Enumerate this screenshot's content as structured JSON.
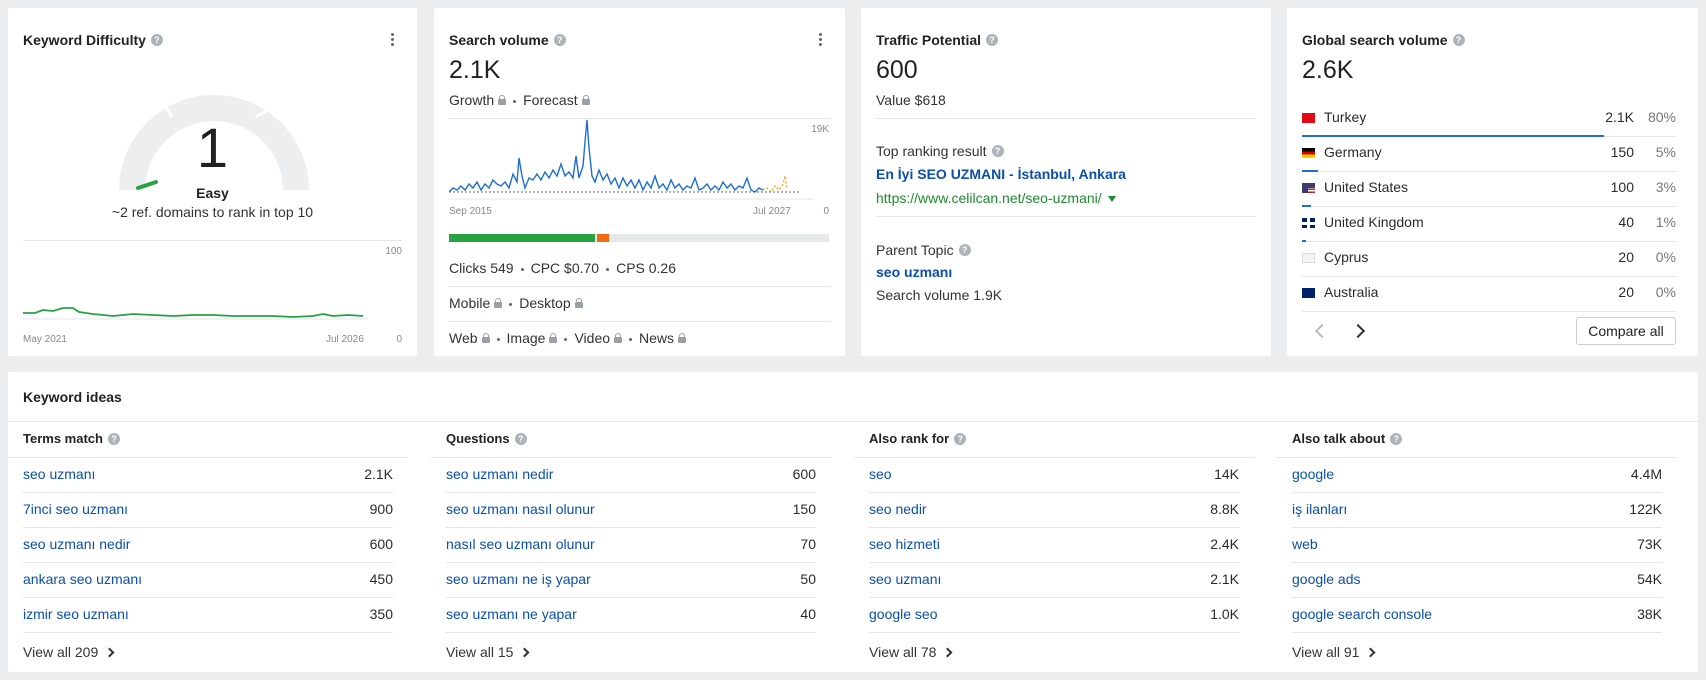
{
  "kd": {
    "title": "Keyword Difficulty",
    "score": "1",
    "score_value": 1,
    "label": "Easy",
    "note": "~2 ref. domains to rank in top 10",
    "chart_start": "May 2021",
    "chart_end": "Jul 2026",
    "chart_max": "100",
    "chart_min": "0"
  },
  "sv": {
    "title": "Search volume",
    "value": "2.1K",
    "growth": "Growth",
    "forecast": "Forecast",
    "chart_start": "Sep 2015",
    "chart_end": "Jul 2027",
    "chart_max": "19K",
    "chart_min": "0",
    "clicks": "Clicks 549",
    "cpc": "CPC $0.70",
    "cps": "CPS 0.26",
    "mobile": "Mobile",
    "desktop": "Desktop",
    "web": "Web",
    "image": "Image",
    "video": "Video",
    "news": "News",
    "click_split": {
      "organic": 0.385,
      "paid": 0.03
    },
    "colors": {
      "organic": "#27a243",
      "paid": "#f06a0f",
      "none": "#e7e8ea"
    }
  },
  "tp": {
    "title": "Traffic Potential",
    "value": "600",
    "value_usd": "Value $618",
    "top_label": "Top ranking result",
    "top_title": "En İyi SEO UZMANI - İstanbul, Ankara",
    "top_url": "https://www.celilcan.net/seo-uzmani/",
    "parent_label": "Parent Topic",
    "parent_kw": "seo uzmanı",
    "parent_sv": "Search volume 1.9K"
  },
  "gsv": {
    "title": "Global search volume",
    "value": "2.6K",
    "rows": [
      {
        "country": "Turkey",
        "value": "2.1K",
        "pct": "80%",
        "share": 0.8,
        "flag": "tr"
      },
      {
        "country": "Germany",
        "value": "150",
        "pct": "5%",
        "share": 0.05,
        "flag": "de"
      },
      {
        "country": "United States",
        "value": "100",
        "pct": "3%",
        "share": 0.03,
        "flag": "us"
      },
      {
        "country": "United Kingdom",
        "value": "40",
        "pct": "1%",
        "share": 0.01,
        "flag": "gb"
      },
      {
        "country": "Cyprus",
        "value": "20",
        "pct": "0%",
        "share": 0.0,
        "flag": "cy"
      },
      {
        "country": "Australia",
        "value": "20",
        "pct": "0%",
        "share": 0.0,
        "flag": "au"
      }
    ],
    "compare": "Compare all"
  },
  "ideas": {
    "title": "Keyword ideas",
    "columns": [
      {
        "header": "Terms match",
        "help": true,
        "rows": [
          [
            "seo uzmanı",
            "2.1K"
          ],
          [
            "7inci seo uzmanı",
            "900"
          ],
          [
            "seo uzmanı nedir",
            "600"
          ],
          [
            "ankara seo uzmanı",
            "450"
          ],
          [
            "izmir seo uzmanı",
            "350"
          ]
        ],
        "view_all": "View all 209"
      },
      {
        "header": "Questions",
        "help": true,
        "rows": [
          [
            "seo uzmanı nedir",
            "600"
          ],
          [
            "seo uzmanı nasıl olunur",
            "150"
          ],
          [
            "nasıl seo uzmanı olunur",
            "70"
          ],
          [
            "seo uzmanı ne iş yapar",
            "50"
          ],
          [
            "seo uzmanı ne yapar",
            "40"
          ]
        ],
        "view_all": "View all 15"
      },
      {
        "header": "Also rank for",
        "help": true,
        "rows": [
          [
            "seo",
            "14K"
          ],
          [
            "seo nedir",
            "8.8K"
          ],
          [
            "seo hizmeti",
            "2.4K"
          ],
          [
            "seo uzmanı",
            "2.1K"
          ],
          [
            "google seo",
            "1.0K"
          ]
        ],
        "view_all": "View all 78"
      },
      {
        "header": "Also talk about",
        "help": true,
        "rows": [
          [
            "google",
            "4.4M"
          ],
          [
            "iş ilanları",
            "122K"
          ],
          [
            "web",
            "73K"
          ],
          [
            "google ads",
            "54K"
          ],
          [
            "google search console",
            "38K"
          ]
        ],
        "view_all": "View all 91"
      }
    ]
  }
}
